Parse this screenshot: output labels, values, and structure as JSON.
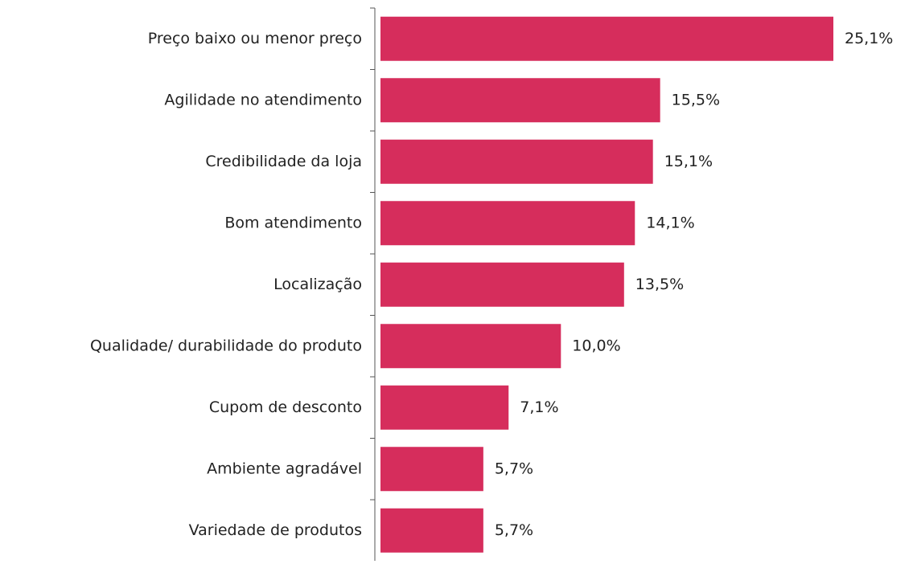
{
  "chart_data": {
    "type": "bar",
    "orientation": "horizontal",
    "categories": [
      "Preço baixo ou menor preço",
      "Agilidade no atendimento",
      "Credibilidade da loja",
      "Bom atendimento",
      "Localização",
      "Qualidade/ durabilidade do produto",
      "Cupom de desconto",
      "Ambiente agradável",
      "Variedade de produtos"
    ],
    "values": [
      25.1,
      15.5,
      15.1,
      14.1,
      13.5,
      10.0,
      7.1,
      5.7,
      5.7
    ],
    "value_labels": [
      "25,1%",
      "15,5%",
      "15,1%",
      "14,1%",
      "13,5%",
      "10,0%",
      "7,1%",
      "5,7%",
      "5,7%"
    ],
    "color": "#d62d5c"
  }
}
